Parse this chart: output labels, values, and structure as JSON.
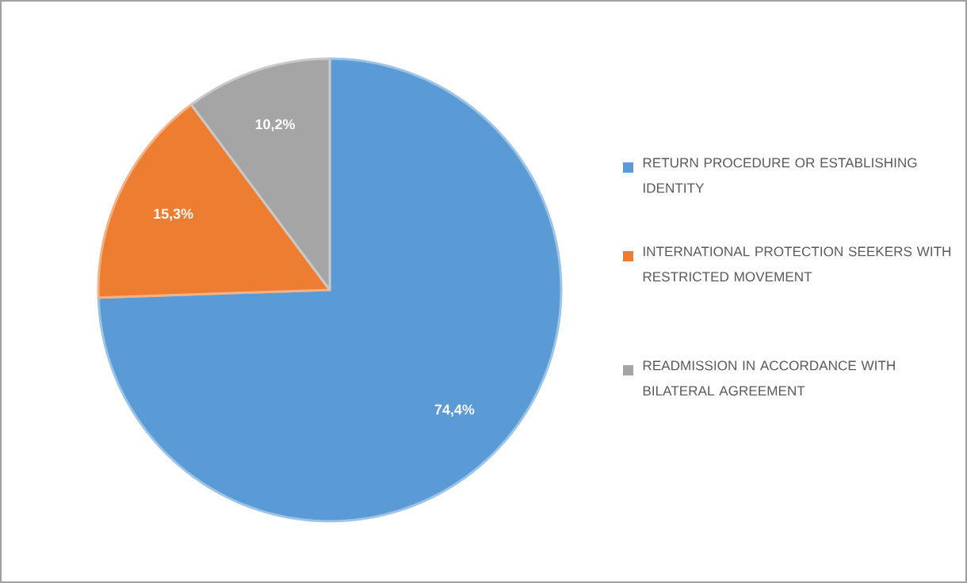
{
  "chart_data": {
    "type": "pie",
    "categories": [
      "RETURN PROCEDURE OR ESTABLISHING IDENTITY",
      "INTERNATIONAL PROTECTION SEEKERS WITH RESTRICTED MOVEMENT",
      "READMISSION IN ACCORDANCE WITH BILATERAL AGREEMENT"
    ],
    "values": [
      74.4,
      15.3,
      10.2
    ],
    "value_labels": [
      "74,4%",
      "15,3%",
      "10,2%"
    ],
    "colors": [
      "#5b9bd5",
      "#ed7d31",
      "#a5a5a5"
    ],
    "legend": "right"
  }
}
